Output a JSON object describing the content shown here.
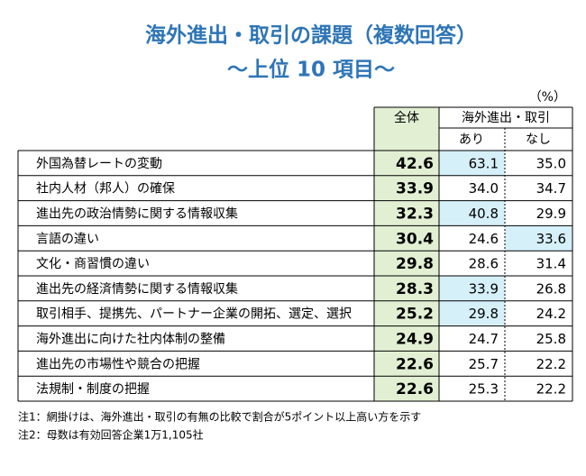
{
  "header": {
    "title": "海外進出・取引の課題（複数回答）",
    "subtitle": "～上位 10 項目～"
  },
  "table": {
    "unit": "（%）",
    "columns": {
      "total": "全体",
      "group": "海外進出・取引",
      "yes": "あり",
      "no": "なし"
    },
    "highlight_color": "#d6f0fa",
    "rows": [
      {
        "label": "外国為替レートの変動",
        "total": "42.6",
        "yes": "63.1",
        "no": "35.0",
        "highlight": "yes"
      },
      {
        "label": "社内人材（邦人）の確保",
        "total": "33.9",
        "yes": "34.0",
        "no": "34.7",
        "highlight": null
      },
      {
        "label": "進出先の政治情勢に関する情報収集",
        "total": "32.3",
        "yes": "40.8",
        "no": "29.9",
        "highlight": "yes"
      },
      {
        "label": "言語の違い",
        "total": "30.4",
        "yes": "24.6",
        "no": "33.6",
        "highlight": "no"
      },
      {
        "label": "文化・商習慣の違い",
        "total": "29.8",
        "yes": "28.6",
        "no": "31.4",
        "highlight": null
      },
      {
        "label": "進出先の経済情勢に関する情報収集",
        "total": "28.3",
        "yes": "33.9",
        "no": "26.8",
        "highlight": "yes"
      },
      {
        "label": "取引相手、提携先、パートナー企業の開拓、選定、選択",
        "total": "25.2",
        "yes": "29.8",
        "no": "24.2",
        "highlight": "yes"
      },
      {
        "label": "海外進出に向けた社内体制の整備",
        "total": "24.9",
        "yes": "24.7",
        "no": "25.8",
        "highlight": null
      },
      {
        "label": "進出先の市場性や競合の把握",
        "total": "22.6",
        "yes": "25.7",
        "no": "22.2",
        "highlight": null
      },
      {
        "label": "法規制・制度の把握",
        "total": "22.6",
        "yes": "25.3",
        "no": "22.2",
        "highlight": null
      }
    ]
  },
  "notes": [
    "注1：網掛けは、海外進出・取引の有無の比較で割合が5ポイント以上高い方を示す",
    "注2：母数は有効回答企業1万1,105社"
  ]
}
